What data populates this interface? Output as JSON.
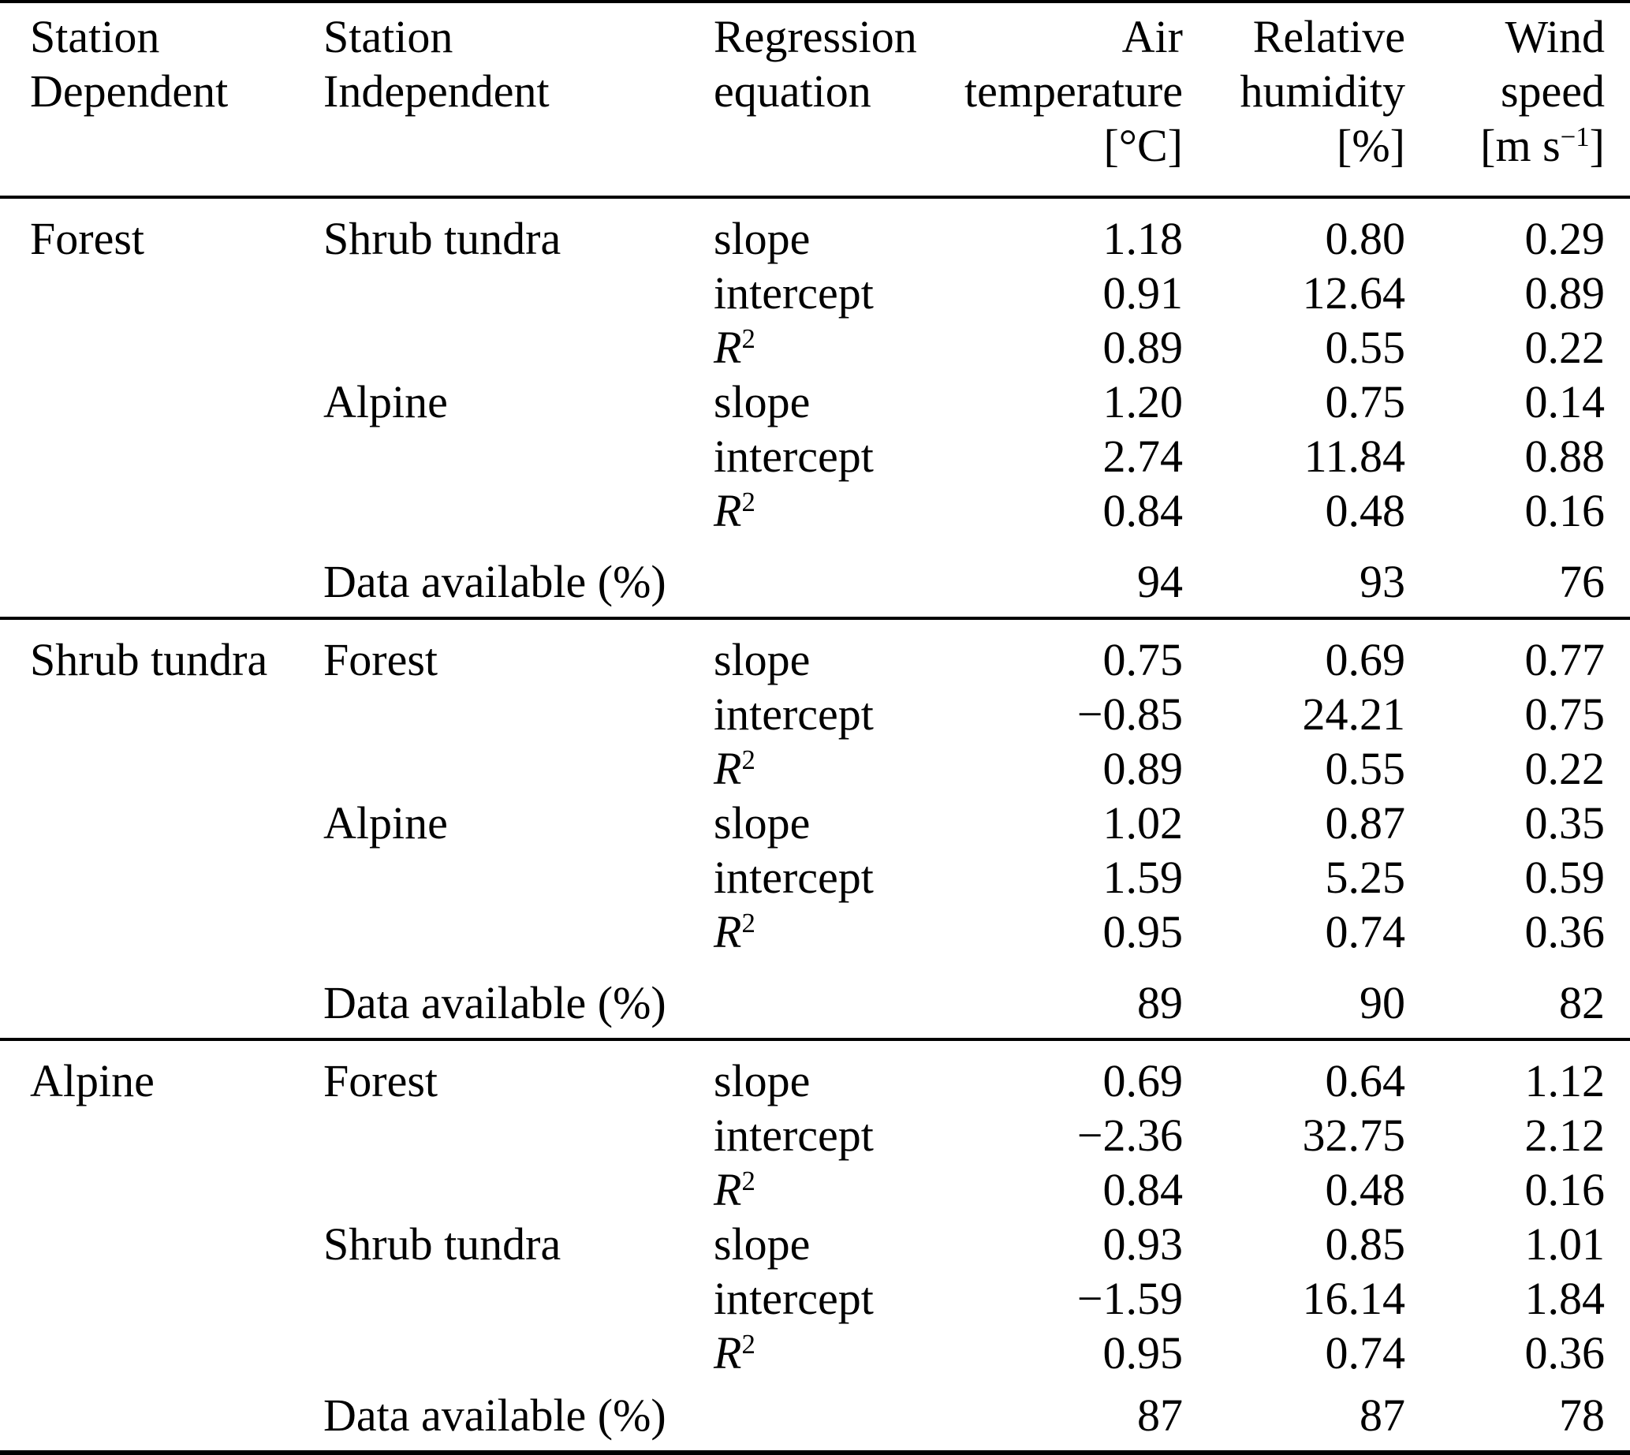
{
  "table": {
    "header": {
      "col_dependent": {
        "line1": "Station",
        "line2": "Dependent"
      },
      "col_independent": {
        "line1": "Station",
        "line2": "Independent"
      },
      "col_regression": {
        "line1": "Regression",
        "line2": "equation"
      },
      "col_air": {
        "line1": "Air",
        "line2": "temperature",
        "unit": "[°C]"
      },
      "col_rh": {
        "line1": "Relative",
        "line2": "humidity",
        "unit": "[%]"
      },
      "col_wind": {
        "line1": "Wind",
        "line2": "speed",
        "unit_base": "[m s",
        "unit_sup": "−1",
        "unit_close": "]"
      }
    },
    "stat_labels": {
      "slope": "slope",
      "intercept": "intercept",
      "r": "R",
      "r_sup": "2"
    },
    "sections": [
      {
        "dependent": "Forest",
        "groups": [
          {
            "independent": "Shrub tundra",
            "slope": {
              "air": "1.18",
              "rh": "0.80",
              "wind": "0.29"
            },
            "intercept": {
              "air": "0.91",
              "rh": "12.64",
              "wind": "0.89"
            },
            "r2": {
              "air": "0.89",
              "rh": "0.55",
              "wind": "0.22"
            }
          },
          {
            "independent": "Alpine",
            "slope": {
              "air": "1.20",
              "rh": "0.75",
              "wind": "0.14"
            },
            "intercept": {
              "air": "2.74",
              "rh": "11.84",
              "wind": "0.88"
            },
            "r2": {
              "air": "0.84",
              "rh": "0.48",
              "wind": "0.16"
            }
          }
        ],
        "data_available": {
          "label": "Data available (%)",
          "air": "94",
          "rh": "93",
          "wind": "76"
        }
      },
      {
        "dependent": "Shrub tundra",
        "groups": [
          {
            "independent": "Forest",
            "slope": {
              "air": "0.75",
              "rh": "0.69",
              "wind": "0.77"
            },
            "intercept": {
              "air": "−0.85",
              "rh": "24.21",
              "wind": "0.75"
            },
            "r2": {
              "air": "0.89",
              "rh": "0.55",
              "wind": "0.22"
            }
          },
          {
            "independent": "Alpine",
            "slope": {
              "air": "1.02",
              "rh": "0.87",
              "wind": "0.35"
            },
            "intercept": {
              "air": "1.59",
              "rh": "5.25",
              "wind": "0.59"
            },
            "r2": {
              "air": "0.95",
              "rh": "0.74",
              "wind": "0.36"
            }
          }
        ],
        "data_available": {
          "label": "Data available (%)",
          "air": "89",
          "rh": "90",
          "wind": "82"
        }
      },
      {
        "dependent": "Alpine",
        "groups": [
          {
            "independent": "Forest",
            "slope": {
              "air": "0.69",
              "rh": "0.64",
              "wind": "1.12"
            },
            "intercept": {
              "air": "−2.36",
              "rh": "32.75",
              "wind": "2.12"
            },
            "r2": {
              "air": "0.84",
              "rh": "0.48",
              "wind": "0.16"
            }
          },
          {
            "independent": "Shrub tundra",
            "slope": {
              "air": "0.93",
              "rh": "0.85",
              "wind": "1.01"
            },
            "intercept": {
              "air": "−1.59",
              "rh": "16.14",
              "wind": "1.84"
            },
            "r2": {
              "air": "0.95",
              "rh": "0.74",
              "wind": "0.36"
            }
          }
        ],
        "data_available": {
          "label": "Data available (%)",
          "air": "87",
          "rh": "87",
          "wind": "78"
        }
      }
    ]
  }
}
